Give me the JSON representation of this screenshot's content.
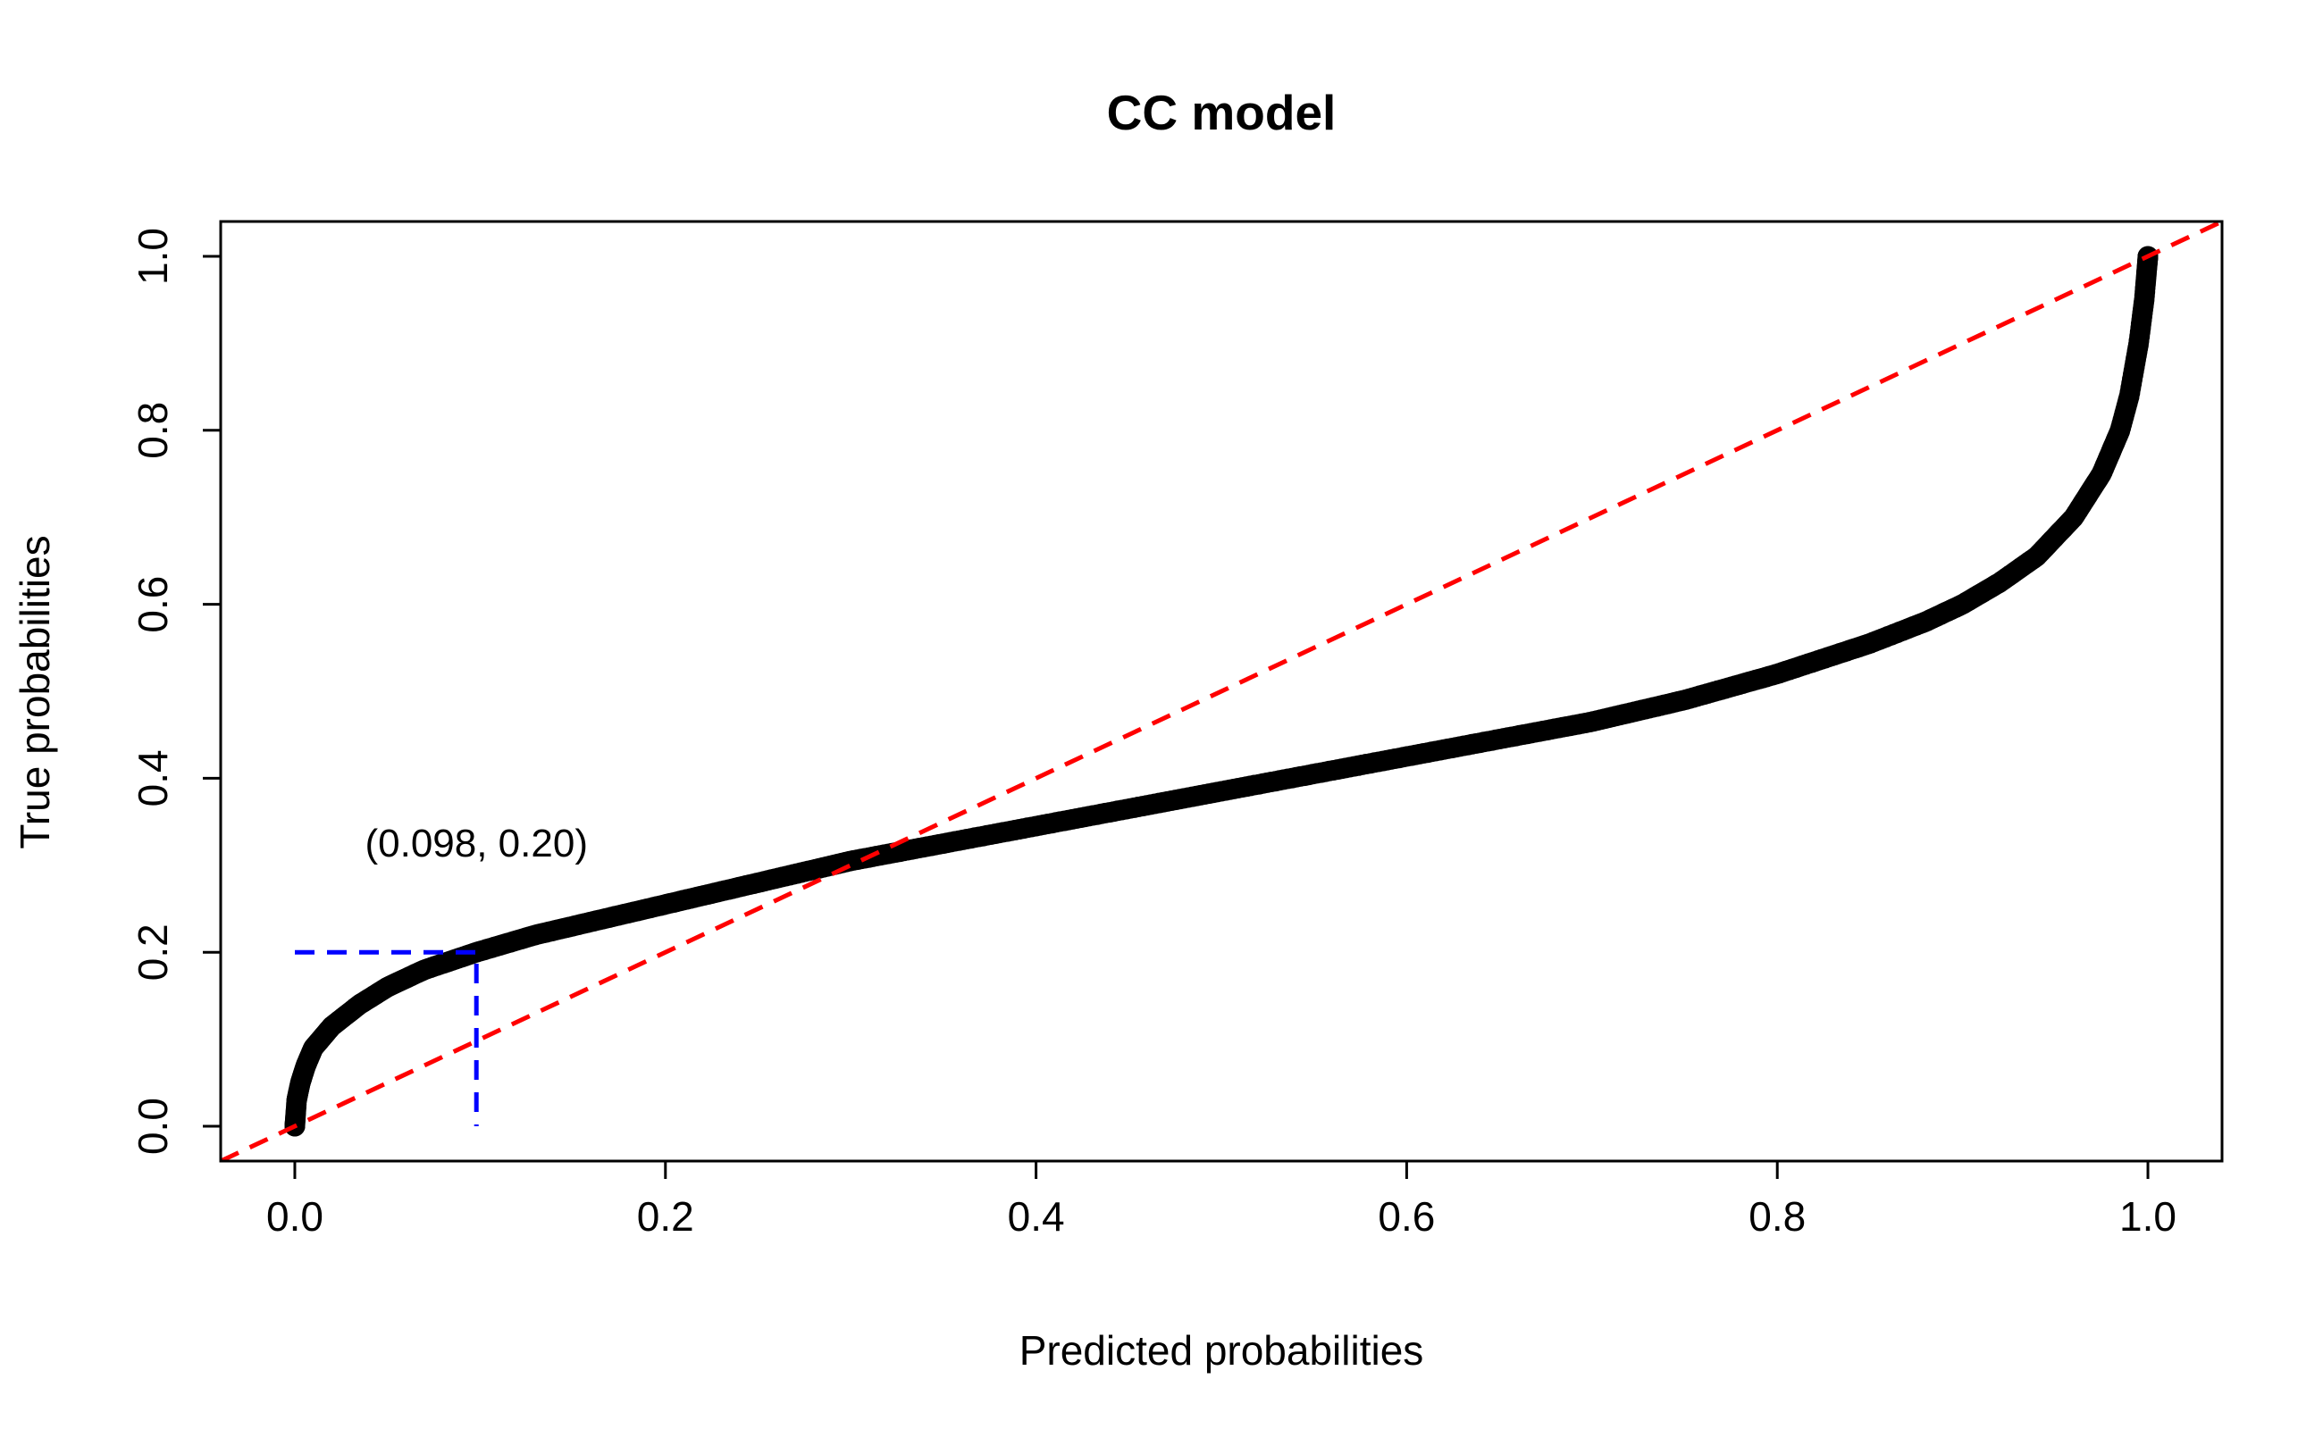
{
  "chart_data": {
    "type": "scatter",
    "title": "CC model",
    "xlabel": "Predicted probabilities",
    "ylabel": "True probabilities",
    "xlim": [
      -0.04,
      1.04
    ],
    "ylim": [
      -0.04,
      1.04
    ],
    "xticks": [
      0.0,
      0.2,
      0.4,
      0.6,
      0.8,
      1.0
    ],
    "xtick_labels": [
      "0.0",
      "0.2",
      "0.4",
      "0.6",
      "0.8",
      "1.0"
    ],
    "yticks": [
      0.0,
      0.2,
      0.4,
      0.6,
      0.8,
      1.0
    ],
    "ytick_labels": [
      "0.0",
      "0.2",
      "0.4",
      "0.6",
      "0.8",
      "1.0"
    ],
    "grid": false,
    "series": [
      {
        "color": "#000000",
        "style": "dense open-circle points",
        "x": [
          0.0,
          0.001,
          0.003,
          0.006,
          0.01,
          0.02,
          0.035,
          0.05,
          0.07,
          0.098,
          0.13,
          0.16,
          0.2,
          0.25,
          0.3,
          0.35,
          0.4,
          0.45,
          0.5,
          0.55,
          0.6,
          0.65,
          0.7,
          0.75,
          0.8,
          0.85,
          0.88,
          0.9,
          0.92,
          0.94,
          0.96,
          0.975,
          0.985,
          0.99,
          0.995,
          0.998,
          1.0
        ],
        "y": [
          0.0,
          0.03,
          0.05,
          0.07,
          0.09,
          0.115,
          0.14,
          0.16,
          0.18,
          0.2,
          0.22,
          0.235,
          0.255,
          0.28,
          0.305,
          0.325,
          0.345,
          0.365,
          0.385,
          0.405,
          0.425,
          0.445,
          0.465,
          0.49,
          0.52,
          0.555,
          0.58,
          0.6,
          0.625,
          0.655,
          0.7,
          0.75,
          0.8,
          0.84,
          0.9,
          0.95,
          1.0
        ]
      },
      {
        "color": "#ff0000",
        "style": "dashed line",
        "x": [
          -0.04,
          1.04
        ],
        "y": [
          -0.04,
          1.04
        ]
      },
      {
        "color": "#0000ff",
        "style": "dashed line",
        "x": [
          0.0,
          0.098,
          0.098
        ],
        "y": [
          0.2,
          0.2,
          0.0
        ]
      }
    ],
    "annotations": [
      {
        "text": "(0.098, 0.20)",
        "x": 0.098,
        "y": 0.31
      }
    ]
  }
}
